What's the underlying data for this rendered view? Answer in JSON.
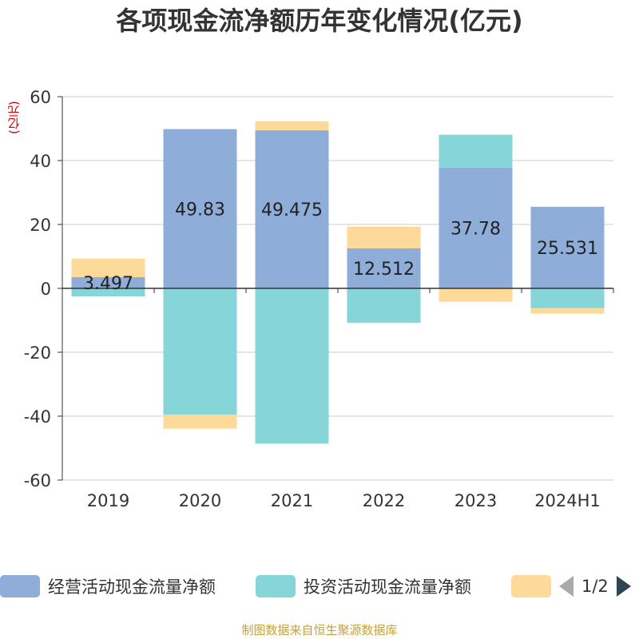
{
  "title": "各项现金流净额历年变化情况(亿元)",
  "y_unit": "(亿元)",
  "source": "制图数据来自恒生聚源数据库",
  "legend": {
    "page_text": "1/2"
  },
  "chart_data": {
    "type": "bar",
    "stacked": true,
    "categories": [
      "2019",
      "2020",
      "2021",
      "2022",
      "2023",
      "2024H1"
    ],
    "ylim": [
      -60,
      60
    ],
    "yticks": [
      60,
      40,
      20,
      0,
      -20,
      -40,
      -60
    ],
    "grid": true,
    "legend_position": "bottom",
    "series": [
      {
        "name": "经营活动现金流量净额",
        "color": "#8eadd9",
        "values": [
          3.497,
          49.83,
          49.475,
          12.512,
          37.78,
          25.531
        ],
        "data_labels": [
          "3.497",
          "49.83",
          "49.475",
          "12.512",
          "37.78",
          "25.531"
        ]
      },
      {
        "name": "投资活动现金流量净额",
        "color": "#86d5d8",
        "values": [
          -2.5,
          -39.5,
          -48.6,
          -10.8,
          10.3,
          -6.2
        ]
      },
      {
        "name": "",
        "color": "#fdd99a",
        "values": [
          5.8,
          -4.4,
          2.8,
          6.8,
          -4.2,
          -1.7
        ]
      }
    ]
  }
}
